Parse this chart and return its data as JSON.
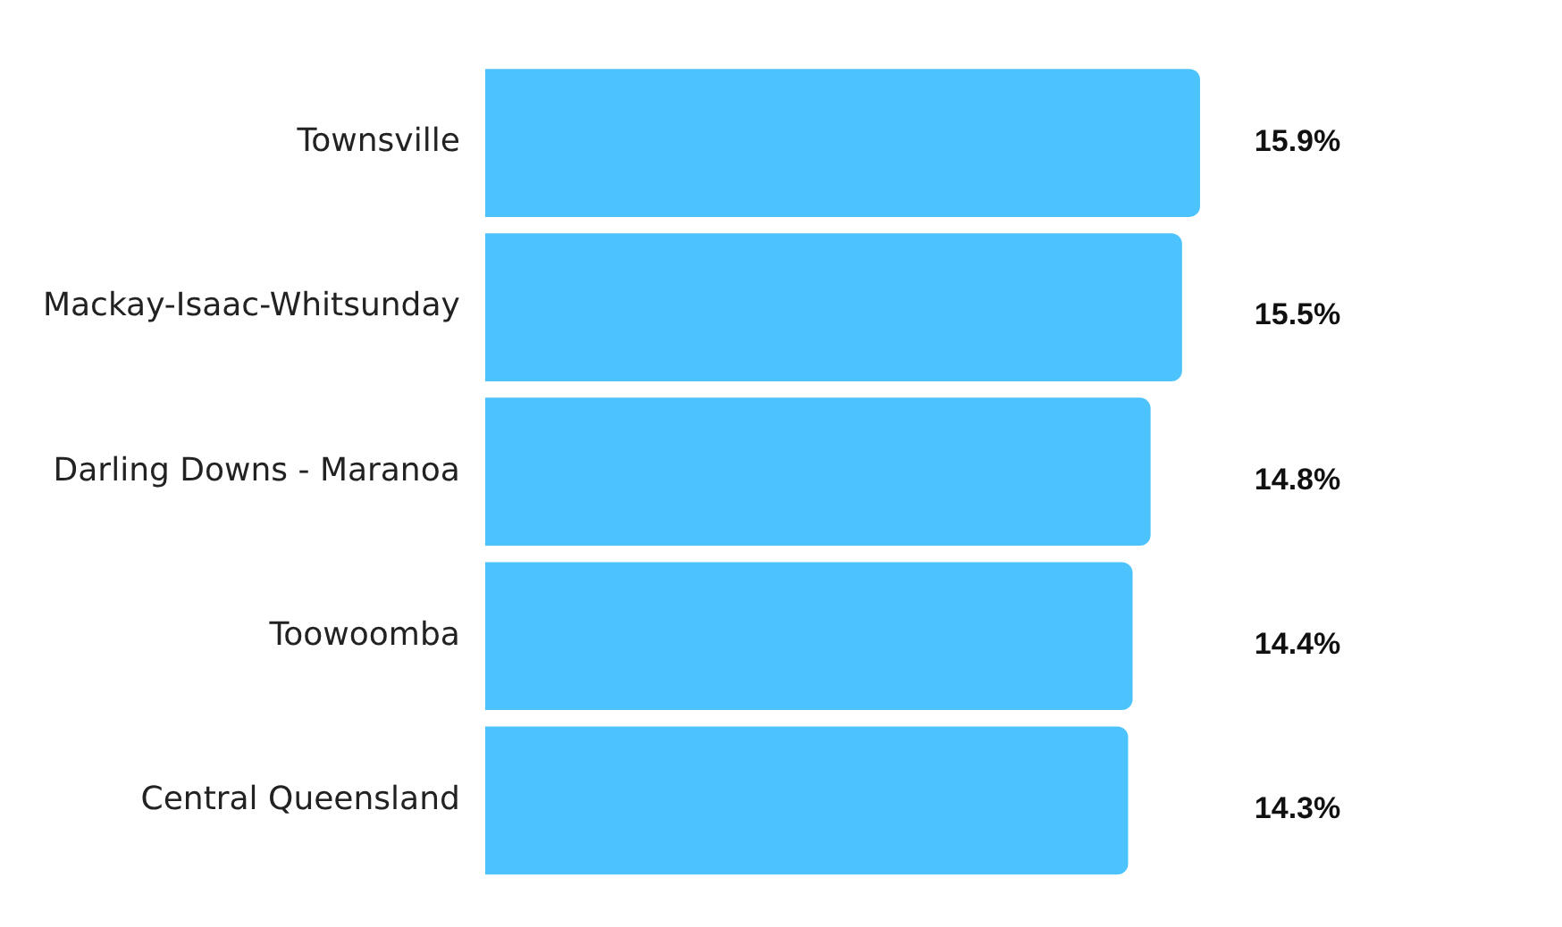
{
  "chart_data": {
    "type": "bar",
    "orientation": "horizontal",
    "categories": [
      "Townsville",
      "Mackay-Isaac-Whitsunday",
      "Darling Downs - Maranoa",
      "Toowoomba",
      "Central Queensland"
    ],
    "values": [
      15.9,
      15.5,
      14.8,
      14.4,
      14.3
    ],
    "value_labels": [
      "15.9%",
      "15.5%",
      "14.8%",
      "14.4%",
      "14.3%"
    ],
    "color": "#4cc3fc",
    "grid": false,
    "legend": false
  }
}
